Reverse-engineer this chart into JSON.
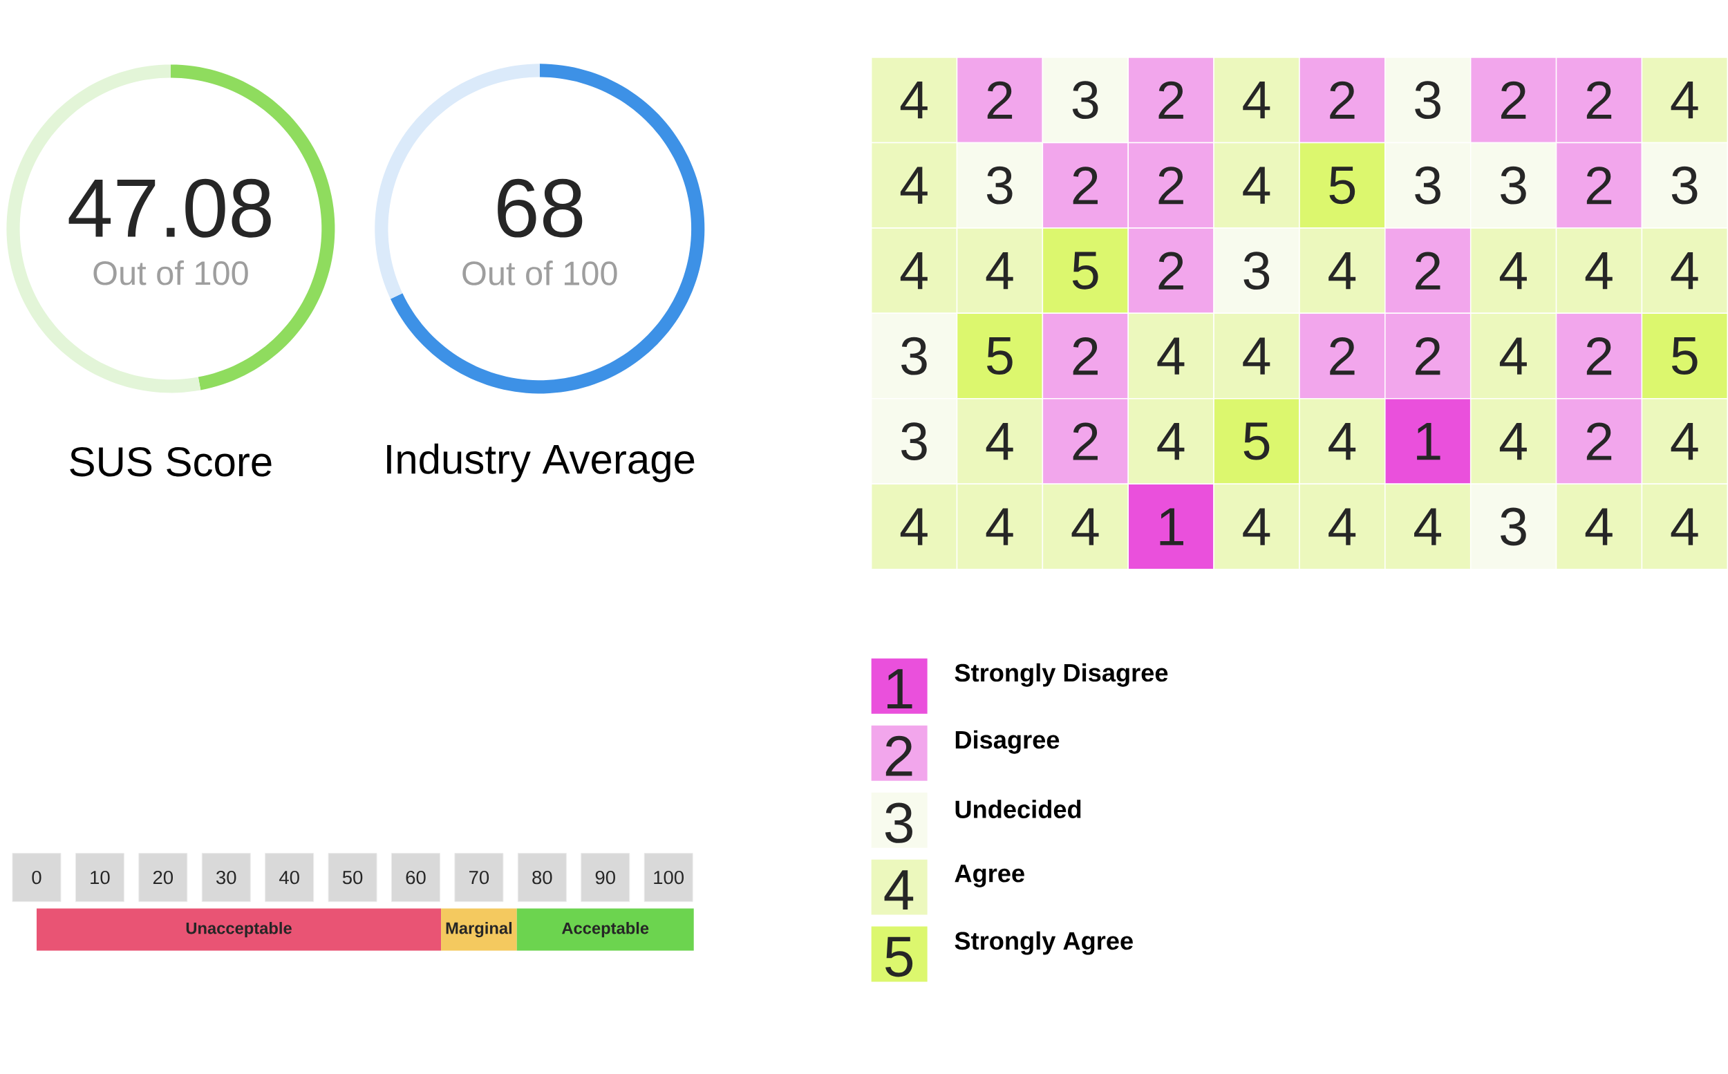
{
  "chart_data": [
    {
      "type": "donut",
      "title": "SUS Score",
      "categories": [
        null,
        null
      ],
      "values": [
        47.08,
        52.92
      ],
      "colors": [
        "#8fdc5e",
        "#e3f5d8"
      ],
      "value_labels": [
        "47.08",
        null
      ],
      "annotations": [
        "Out of 100"
      ]
    },
    {
      "type": "donut",
      "title": "Industry Average",
      "categories": [
        null,
        null
      ],
      "values": [
        68,
        32
      ],
      "colors": [
        "#3d91e6",
        "#dbeafa"
      ],
      "value_labels": [
        "68",
        null
      ],
      "annotations": [
        "Out of 100"
      ]
    },
    {
      "type": "heatmap",
      "categories": [
        null,
        null,
        null,
        null,
        null,
        null,
        null,
        null,
        null,
        null
      ],
      "y_categories": [
        null,
        null,
        null,
        null,
        null,
        null
      ],
      "cells": [
        [
          4,
          2,
          3,
          2,
          4,
          2,
          3,
          2,
          2,
          4
        ],
        [
          4,
          3,
          2,
          2,
          4,
          5,
          3,
          3,
          2,
          3
        ],
        [
          4,
          4,
          5,
          2,
          3,
          4,
          2,
          4,
          4,
          4
        ],
        [
          3,
          5,
          2,
          4,
          4,
          2,
          2,
          4,
          2,
          5
        ],
        [
          3,
          4,
          2,
          4,
          5,
          4,
          1,
          4,
          2,
          4
        ],
        [
          4,
          4,
          4,
          1,
          4,
          4,
          4,
          3,
          4,
          4
        ]
      ],
      "data_labels": true
    },
    {
      "type": "other",
      "categories": [
        "Strongly Disagree",
        "Disagree",
        "Undecided",
        "Agree",
        "Strongly Agree"
      ],
      "values": [
        1,
        2,
        3,
        4,
        5
      ],
      "colors": [
        "#ea50dc",
        "#f2a6ec",
        "#f8fbee",
        "#ecf8bd",
        "#dcf76e"
      ],
      "data_labels": true
    },
    {
      "type": "bar",
      "orientation": "horizontal",
      "stacked": true,
      "categories": [
        null
      ],
      "xlim": [
        0,
        104
      ],
      "xticks": [
        0,
        10,
        20,
        30,
        40,
        50,
        60,
        70,
        80,
        90,
        100
      ],
      "series": [
        {
          "name": "Unacceptable",
          "color": "#e95474",
          "values": [
            64
          ]
        },
        {
          "name": "Marginal",
          "color": "#f4c95f",
          "values": [
            12
          ]
        },
        {
          "name": "Acceptable",
          "color": "#6cd44f",
          "values": [
            28
          ]
        }
      ]
    }
  ]
}
